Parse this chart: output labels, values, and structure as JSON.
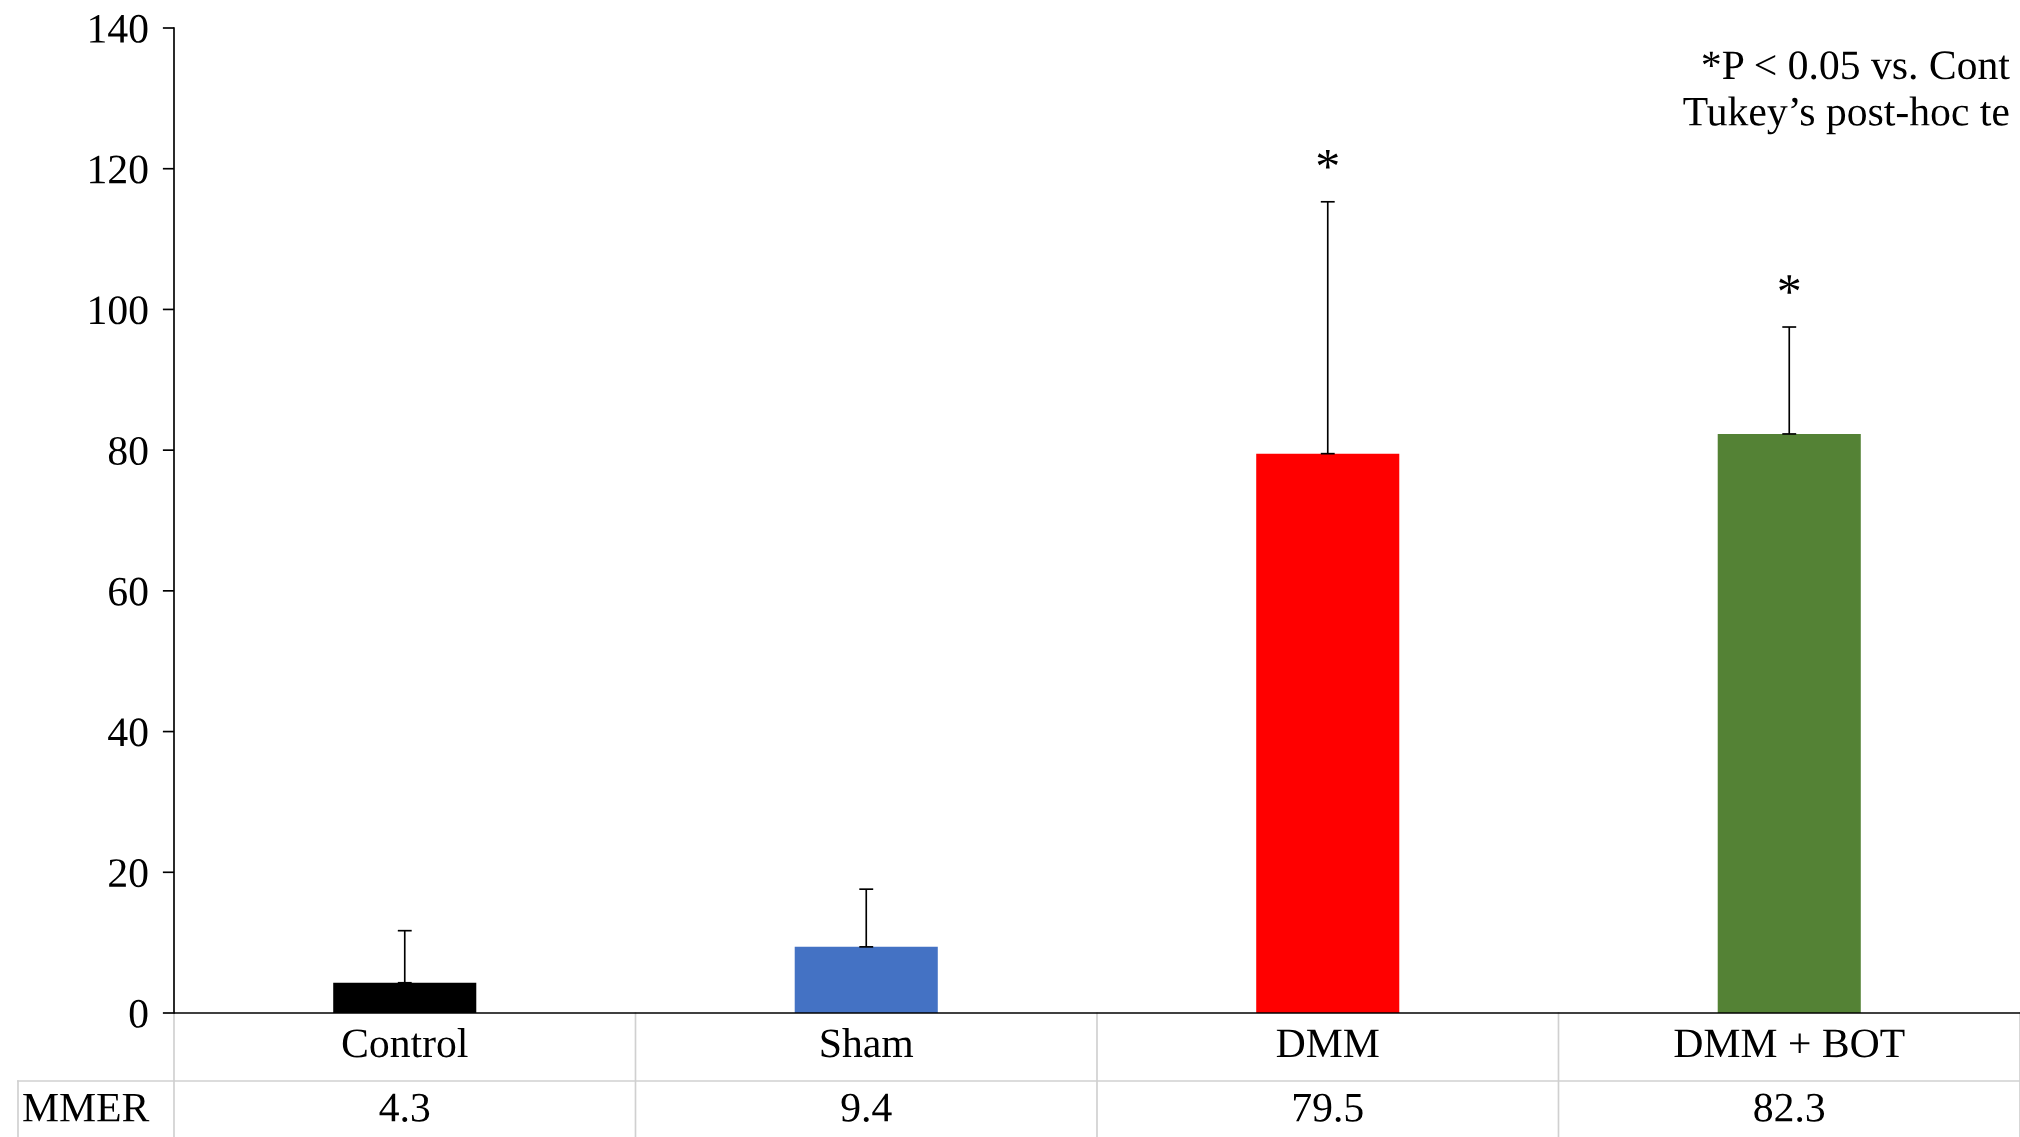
{
  "chart_data": {
    "type": "bar",
    "categories": [
      "Control",
      "Sham",
      "DMM",
      "DMM + BOT"
    ],
    "series": [
      {
        "name": "MMER",
        "colors": [
          "#000000",
          "#4472c4",
          "#ff0000",
          "#548235"
        ],
        "values": [
          4.3,
          9.4,
          79.5,
          82.3
        ],
        "errors": [
          [
            4.3,
            11.7
          ],
          [
            9.4,
            17.6
          ],
          [
            79.5,
            115.3
          ],
          [
            82.3,
            97.5
          ]
        ]
      }
    ],
    "ylim": [
      0,
      140
    ],
    "yticks": [
      0,
      20,
      40,
      60,
      80,
      100,
      120,
      140
    ],
    "data_labels": true,
    "grid": false,
    "annotations": [
      {
        "text": "*",
        "x": "DMM",
        "y": 115.3
      },
      {
        "text": "*",
        "x": "DMM + BOT",
        "y": 97.5
      },
      "*P < 0.05 vs. Cont\nTukey’s post-hoc te"
    ]
  }
}
